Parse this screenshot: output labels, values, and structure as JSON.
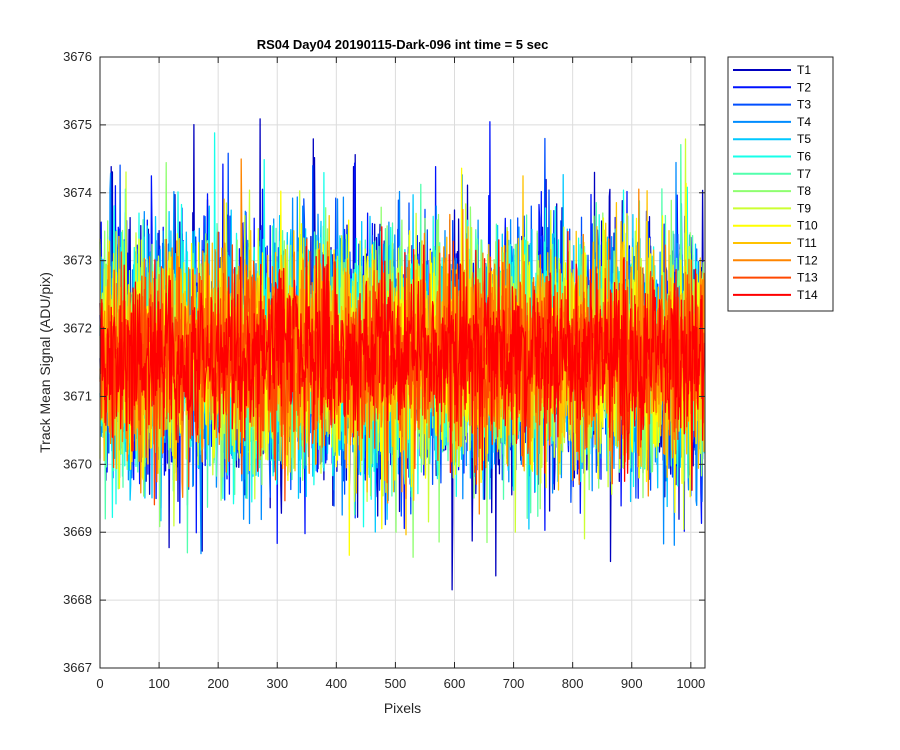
{
  "chart_data": {
    "type": "line",
    "title": "RS04 Day04 20190115-Dark-096 int time = 5 sec",
    "xlabel": "Pixels",
    "ylabel": "Track Mean Signal (ADU/pix)",
    "xlim": [
      0,
      1024
    ],
    "ylim": [
      3667,
      3676
    ],
    "xticks": [
      "0",
      "100",
      "200",
      "300",
      "400",
      "500",
      "600",
      "700",
      "800",
      "900",
      "1000"
    ],
    "yticks": [
      "3667",
      "3668",
      "3669",
      "3670",
      "3671",
      "3672",
      "3673",
      "3674",
      "3675",
      "3676"
    ],
    "grid": true,
    "legend_position": "outside-top-right",
    "n_points": 1024,
    "mean_signal": 3671.6,
    "series": [
      {
        "name": "T1",
        "color": "#0000bf",
        "noise_std": 1.05
      },
      {
        "name": "T2",
        "color": "#0012ff",
        "noise_std": 1.0
      },
      {
        "name": "T3",
        "color": "#004fff",
        "noise_std": 0.95
      },
      {
        "name": "T4",
        "color": "#008cff",
        "noise_std": 0.9
      },
      {
        "name": "T5",
        "color": "#00c8ff",
        "noise_std": 0.9
      },
      {
        "name": "T6",
        "color": "#16ffea",
        "noise_std": 0.88
      },
      {
        "name": "T7",
        "color": "#52ffad",
        "noise_std": 0.85
      },
      {
        "name": "T8",
        "color": "#8fff70",
        "noise_std": 0.85
      },
      {
        "name": "T9",
        "color": "#ccff33",
        "noise_std": 0.82
      },
      {
        "name": "T10",
        "color": "#ffff00",
        "noise_std": 0.8
      },
      {
        "name": "T11",
        "color": "#ffc200",
        "noise_std": 0.78
      },
      {
        "name": "T12",
        "color": "#ff8500",
        "noise_std": 0.75
      },
      {
        "name": "T13",
        "color": "#ff4800",
        "noise_std": 0.7
      },
      {
        "name": "T14",
        "color": "#ff0000",
        "noise_std": 0.6
      }
    ]
  }
}
